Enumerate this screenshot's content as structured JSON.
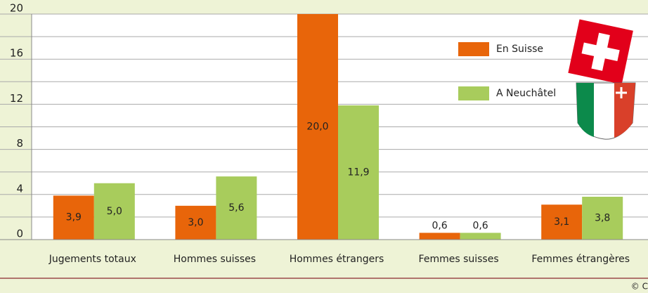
{
  "chart_data": {
    "type": "bar",
    "categories": [
      "Jugements totaux",
      "Hommes suisses",
      "Hommes étrangers",
      "Femmes suisses",
      "Femmes étrangères"
    ],
    "series": [
      {
        "name": "En Suisse",
        "color": "#e8650a",
        "values": [
          3.9,
          3.0,
          20.0,
          0.6,
          3.1
        ],
        "value_labels": [
          "3,9",
          "3,0",
          "20,0",
          "0,6",
          "3,1"
        ]
      },
      {
        "name": "A Neuchâtel",
        "color": "#a8cc5c",
        "values": [
          5.0,
          5.6,
          11.9,
          0.6,
          3.8
        ],
        "value_labels": [
          "5,0",
          "5,6",
          "11,9",
          "0,6",
          "3,8"
        ]
      }
    ],
    "ylim": [
      0,
      20
    ],
    "yticks": [
      0,
      4,
      8,
      12,
      16,
      20
    ],
    "y_minor_ticks": [
      2,
      6,
      10,
      14,
      18
    ],
    "grid": true,
    "credit": "© C"
  }
}
